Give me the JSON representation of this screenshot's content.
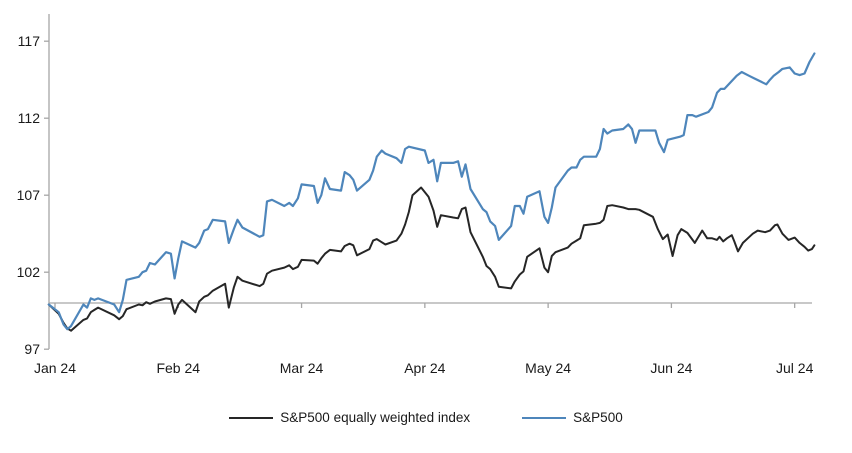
{
  "chart_data": {
    "type": "line",
    "title": "",
    "xlabel": "",
    "ylabel": "",
    "ylim": [
      97,
      117
    ],
    "y_ticks": [
      97,
      102,
      107,
      112,
      117
    ],
    "x_tick_labels": [
      "Jan 24",
      "Feb 24",
      "Mar 24",
      "Apr 24",
      "May 24",
      "Jun 24",
      "Jul 24"
    ],
    "baseline_value": 100,
    "grid": false,
    "legend_position": "bottom",
    "axis_color": "#a6a6a6",
    "label_color": "#1a1a1a",
    "series": [
      {
        "name": "S&P500 equally weighted index",
        "color": "#262626",
        "width": 2,
        "points": [
          [
            -0.05,
            99.9
          ],
          [
            0.03,
            99.3
          ],
          [
            0.07,
            98.7
          ],
          [
            0.1,
            98.35
          ],
          [
            0.13,
            98.2
          ],
          [
            0.23,
            98.9
          ],
          [
            0.26,
            99.0
          ],
          [
            0.29,
            99.4
          ],
          [
            0.32,
            99.55
          ],
          [
            0.35,
            99.7
          ],
          [
            0.48,
            99.2
          ],
          [
            0.52,
            98.95
          ],
          [
            0.55,
            99.15
          ],
          [
            0.58,
            99.6
          ],
          [
            0.68,
            99.9
          ],
          [
            0.71,
            99.85
          ],
          [
            0.74,
            100.05
          ],
          [
            0.77,
            99.95
          ],
          [
            0.81,
            100.1
          ],
          [
            0.9,
            100.3
          ],
          [
            0.94,
            100.25
          ],
          [
            0.97,
            99.3
          ],
          [
            1.0,
            99.9
          ],
          [
            1.03,
            100.2
          ],
          [
            1.14,
            99.4
          ],
          [
            1.17,
            100.1
          ],
          [
            1.21,
            100.4
          ],
          [
            1.24,
            100.5
          ],
          [
            1.28,
            100.8
          ],
          [
            1.38,
            101.25
          ],
          [
            1.41,
            99.7
          ],
          [
            1.45,
            101.0
          ],
          [
            1.48,
            101.7
          ],
          [
            1.52,
            101.45
          ],
          [
            1.66,
            101.1
          ],
          [
            1.69,
            101.25
          ],
          [
            1.72,
            101.9
          ],
          [
            1.76,
            102.1
          ],
          [
            1.86,
            102.3
          ],
          [
            1.9,
            102.45
          ],
          [
            1.93,
            102.2
          ],
          [
            1.97,
            102.35
          ],
          [
            2.0,
            102.8
          ],
          [
            2.1,
            102.75
          ],
          [
            2.13,
            102.55
          ],
          [
            2.16,
            102.9
          ],
          [
            2.19,
            103.2
          ],
          [
            2.23,
            103.45
          ],
          [
            2.32,
            103.35
          ],
          [
            2.35,
            103.7
          ],
          [
            2.39,
            103.85
          ],
          [
            2.42,
            103.75
          ],
          [
            2.45,
            103.1
          ],
          [
            2.55,
            103.5
          ],
          [
            2.58,
            104.05
          ],
          [
            2.61,
            104.15
          ],
          [
            2.65,
            103.95
          ],
          [
            2.68,
            103.8
          ],
          [
            2.77,
            104.05
          ],
          [
            2.81,
            104.5
          ],
          [
            2.84,
            105.1
          ],
          [
            2.87,
            105.9
          ],
          [
            2.9,
            107.0
          ],
          [
            2.97,
            107.5
          ],
          [
            3.0,
            107.2
          ],
          [
            3.03,
            106.9
          ],
          [
            3.07,
            106.0
          ],
          [
            3.1,
            104.95
          ],
          [
            3.13,
            105.7
          ],
          [
            3.23,
            105.55
          ],
          [
            3.27,
            105.5
          ],
          [
            3.3,
            106.1
          ],
          [
            3.33,
            106.2
          ],
          [
            3.37,
            104.6
          ],
          [
            3.47,
            103.0
          ],
          [
            3.5,
            102.4
          ],
          [
            3.53,
            102.2
          ],
          [
            3.57,
            101.7
          ],
          [
            3.6,
            101.05
          ],
          [
            3.7,
            100.95
          ],
          [
            3.73,
            101.4
          ],
          [
            3.77,
            101.85
          ],
          [
            3.8,
            102.05
          ],
          [
            3.83,
            103.0
          ],
          [
            3.93,
            103.55
          ],
          [
            3.97,
            102.3
          ],
          [
            4.0,
            102.0
          ],
          [
            4.03,
            103.05
          ],
          [
            4.06,
            103.3
          ],
          [
            4.16,
            103.6
          ],
          [
            4.19,
            103.85
          ],
          [
            4.23,
            104.05
          ],
          [
            4.26,
            104.2
          ],
          [
            4.29,
            105.05
          ],
          [
            4.39,
            105.15
          ],
          [
            4.42,
            105.2
          ],
          [
            4.45,
            105.4
          ],
          [
            4.48,
            106.3
          ],
          [
            4.52,
            106.35
          ],
          [
            4.61,
            106.2
          ],
          [
            4.65,
            106.1
          ],
          [
            4.71,
            106.1
          ],
          [
            4.74,
            106.05
          ],
          [
            4.85,
            105.6
          ],
          [
            4.89,
            104.8
          ],
          [
            4.93,
            104.15
          ],
          [
            4.97,
            104.45
          ],
          [
            5.01,
            103.05
          ],
          [
            5.05,
            104.4
          ],
          [
            5.08,
            104.8
          ],
          [
            5.13,
            104.55
          ],
          [
            5.19,
            103.9
          ],
          [
            5.25,
            104.7
          ],
          [
            5.29,
            104.2
          ],
          [
            5.33,
            104.2
          ],
          [
            5.37,
            104.1
          ],
          [
            5.39,
            104.3
          ],
          [
            5.42,
            104.0
          ],
          [
            5.45,
            104.2
          ],
          [
            5.49,
            104.4
          ],
          [
            5.51,
            104.0
          ],
          [
            5.54,
            103.35
          ],
          [
            5.58,
            103.9
          ],
          [
            5.62,
            104.2
          ],
          [
            5.66,
            104.5
          ],
          [
            5.7,
            104.7
          ],
          [
            5.76,
            104.6
          ],
          [
            5.8,
            104.7
          ],
          [
            5.84,
            105.05
          ],
          [
            5.86,
            105.1
          ],
          [
            5.9,
            104.5
          ],
          [
            5.95,
            104.1
          ],
          [
            6.0,
            104.25
          ],
          [
            6.04,
            103.9
          ],
          [
            6.08,
            103.65
          ],
          [
            6.11,
            103.4
          ],
          [
            6.14,
            103.5
          ],
          [
            6.16,
            103.75
          ]
        ]
      },
      {
        "name": "S&P500",
        "color": "#4e86bb",
        "width": 2.2,
        "points": [
          [
            -0.05,
            99.9
          ],
          [
            0.03,
            99.4
          ],
          [
            0.07,
            98.6
          ],
          [
            0.1,
            98.3
          ],
          [
            0.13,
            98.5
          ],
          [
            0.23,
            99.9
          ],
          [
            0.26,
            99.7
          ],
          [
            0.29,
            100.3
          ],
          [
            0.32,
            100.2
          ],
          [
            0.35,
            100.3
          ],
          [
            0.48,
            99.9
          ],
          [
            0.52,
            99.4
          ],
          [
            0.55,
            100.2
          ],
          [
            0.58,
            101.5
          ],
          [
            0.68,
            101.7
          ],
          [
            0.71,
            102.0
          ],
          [
            0.74,
            102.1
          ],
          [
            0.77,
            102.6
          ],
          [
            0.81,
            102.5
          ],
          [
            0.9,
            103.3
          ],
          [
            0.94,
            103.2
          ],
          [
            0.97,
            101.6
          ],
          [
            1.0,
            102.9
          ],
          [
            1.03,
            104.0
          ],
          [
            1.14,
            103.6
          ],
          [
            1.17,
            103.9
          ],
          [
            1.21,
            104.7
          ],
          [
            1.24,
            104.8
          ],
          [
            1.28,
            105.4
          ],
          [
            1.38,
            105.3
          ],
          [
            1.41,
            103.9
          ],
          [
            1.45,
            104.8
          ],
          [
            1.48,
            105.4
          ],
          [
            1.52,
            104.9
          ],
          [
            1.66,
            104.3
          ],
          [
            1.69,
            104.4
          ],
          [
            1.72,
            106.6
          ],
          [
            1.76,
            106.7
          ],
          [
            1.86,
            106.3
          ],
          [
            1.9,
            106.5
          ],
          [
            1.93,
            106.3
          ],
          [
            1.97,
            106.8
          ],
          [
            2.0,
            107.7
          ],
          [
            2.1,
            107.6
          ],
          [
            2.13,
            106.5
          ],
          [
            2.16,
            107.0
          ],
          [
            2.19,
            108.1
          ],
          [
            2.23,
            107.4
          ],
          [
            2.32,
            107.3
          ],
          [
            2.35,
            108.5
          ],
          [
            2.39,
            108.3
          ],
          [
            2.42,
            108.0
          ],
          [
            2.45,
            107.3
          ],
          [
            2.55,
            108.0
          ],
          [
            2.58,
            108.6
          ],
          [
            2.61,
            109.5
          ],
          [
            2.65,
            109.9
          ],
          [
            2.68,
            109.7
          ],
          [
            2.77,
            109.4
          ],
          [
            2.81,
            109.1
          ],
          [
            2.84,
            110.0
          ],
          [
            2.87,
            110.15
          ],
          [
            3.0,
            109.9
          ],
          [
            3.03,
            109.1
          ],
          [
            3.07,
            109.3
          ],
          [
            3.1,
            107.9
          ],
          [
            3.13,
            109.1
          ],
          [
            3.23,
            109.1
          ],
          [
            3.27,
            109.2
          ],
          [
            3.3,
            108.2
          ],
          [
            3.33,
            109.0
          ],
          [
            3.37,
            107.4
          ],
          [
            3.47,
            106.1
          ],
          [
            3.5,
            105.9
          ],
          [
            3.53,
            105.3
          ],
          [
            3.57,
            105.0
          ],
          [
            3.6,
            104.1
          ],
          [
            3.7,
            105.0
          ],
          [
            3.73,
            106.3
          ],
          [
            3.77,
            106.3
          ],
          [
            3.8,
            105.8
          ],
          [
            3.83,
            106.9
          ],
          [
            3.93,
            107.25
          ],
          [
            3.97,
            105.6
          ],
          [
            4.0,
            105.2
          ],
          [
            4.03,
            106.2
          ],
          [
            4.06,
            107.5
          ],
          [
            4.16,
            108.6
          ],
          [
            4.19,
            108.8
          ],
          [
            4.23,
            108.8
          ],
          [
            4.26,
            109.3
          ],
          [
            4.29,
            109.5
          ],
          [
            4.39,
            109.5
          ],
          [
            4.42,
            110.0
          ],
          [
            4.45,
            111.3
          ],
          [
            4.48,
            111.0
          ],
          [
            4.52,
            111.2
          ],
          [
            4.61,
            111.3
          ],
          [
            4.65,
            111.6
          ],
          [
            4.68,
            111.3
          ],
          [
            4.71,
            110.4
          ],
          [
            4.74,
            111.2
          ],
          [
            4.87,
            111.2
          ],
          [
            4.9,
            110.4
          ],
          [
            4.94,
            109.8
          ],
          [
            4.97,
            110.6
          ],
          [
            5.07,
            110.8
          ],
          [
            5.1,
            110.9
          ],
          [
            5.13,
            112.2
          ],
          [
            5.17,
            112.2
          ],
          [
            5.2,
            112.1
          ],
          [
            5.3,
            112.4
          ],
          [
            5.33,
            112.7
          ],
          [
            5.37,
            113.65
          ],
          [
            5.4,
            113.9
          ],
          [
            5.43,
            113.9
          ],
          [
            5.53,
            114.75
          ],
          [
            5.57,
            115.0
          ],
          [
            5.63,
            114.75
          ],
          [
            5.67,
            114.6
          ],
          [
            5.77,
            114.2
          ],
          [
            5.8,
            114.5
          ],
          [
            5.83,
            114.75
          ],
          [
            5.87,
            115.0
          ],
          [
            5.9,
            115.2
          ],
          [
            5.96,
            115.3
          ],
          [
            6.0,
            114.9
          ],
          [
            6.04,
            114.8
          ],
          [
            6.08,
            114.9
          ],
          [
            6.12,
            115.65
          ],
          [
            6.16,
            116.2
          ]
        ]
      }
    ]
  },
  "legend": {
    "items": [
      {
        "label": "S&P500 equally weighted index",
        "color": "#262626"
      },
      {
        "label": "S&P500",
        "color": "#4e86bb"
      }
    ]
  }
}
